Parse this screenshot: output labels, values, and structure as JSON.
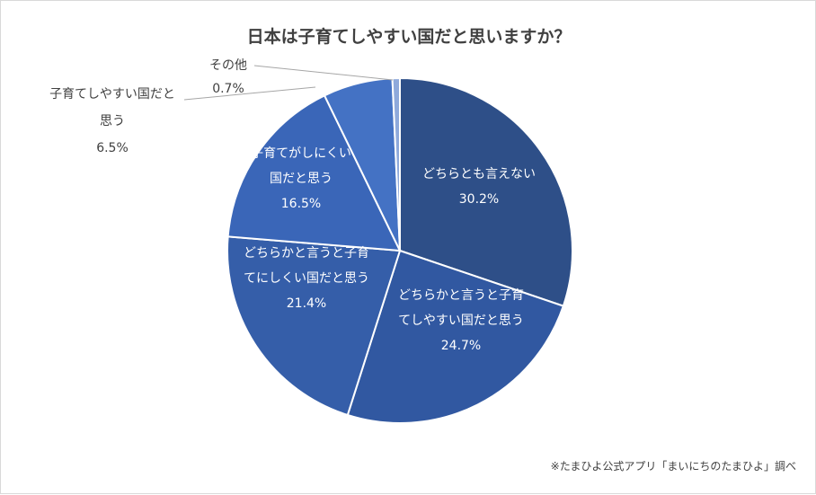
{
  "chart_data": {
    "type": "pie",
    "title": "日本は子育てしやすい国だと思いますか？",
    "source_note": "※たまひよ公式アプリ「まいにちのたまひよ」調べ",
    "start_clockwise_from_top": true,
    "slices": [
      {
        "label_lines": [
          "どちらとも言えない"
        ],
        "value": 30.2,
        "value_text": "30.2%",
        "color": "#2e4f88",
        "label_position": "inside"
      },
      {
        "label_lines": [
          "どちらかと言うと子育",
          "てしやすい国だと思う"
        ],
        "value": 24.7,
        "value_text": "24.7%",
        "color": "#3158a1",
        "label_position": "inside"
      },
      {
        "label_lines": [
          "どちらかと言うと子育",
          "てにしくい国だと思う"
        ],
        "value": 21.4,
        "value_text": "21.4%",
        "color": "#355ea9",
        "label_position": "inside"
      },
      {
        "label_lines": [
          "子育てがしにくい",
          "国だと思う"
        ],
        "value": 16.5,
        "value_text": "16.5%",
        "color": "#3a66b8",
        "label_position": "inside"
      },
      {
        "label_lines": [
          "子育てしやすい国だと",
          "思う"
        ],
        "value": 6.5,
        "value_text": "6.5%",
        "color": "#4472c4",
        "label_position": "outside"
      },
      {
        "label_lines": [
          "その他"
        ],
        "value": 0.7,
        "value_text": "0.7%",
        "color": "#8ea9db",
        "label_position": "outside"
      }
    ]
  }
}
